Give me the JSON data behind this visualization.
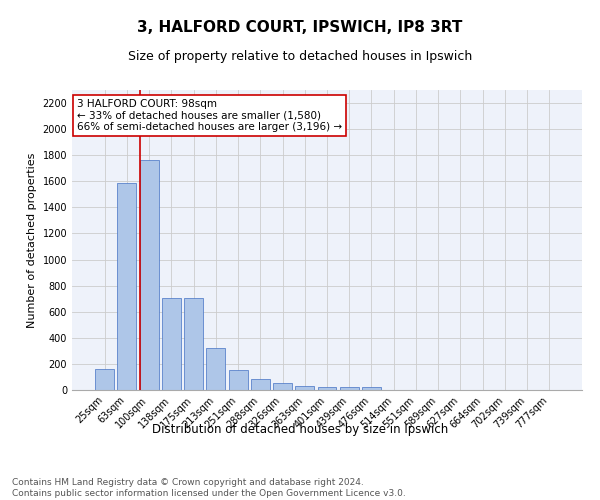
{
  "title1": "3, HALFORD COURT, IPSWICH, IP8 3RT",
  "title2": "Size of property relative to detached houses in Ipswich",
  "xlabel": "Distribution of detached houses by size in Ipswich",
  "ylabel": "Number of detached properties",
  "categories": [
    "25sqm",
    "63sqm",
    "100sqm",
    "138sqm",
    "175sqm",
    "213sqm",
    "251sqm",
    "288sqm",
    "326sqm",
    "363sqm",
    "401sqm",
    "439sqm",
    "476sqm",
    "514sqm",
    "551sqm",
    "589sqm",
    "627sqm",
    "664sqm",
    "702sqm",
    "739sqm",
    "777sqm"
  ],
  "values": [
    160,
    1590,
    1760,
    705,
    705,
    320,
    155,
    85,
    50,
    30,
    20,
    20,
    20,
    0,
    0,
    0,
    0,
    0,
    0,
    0,
    0
  ],
  "bar_color": "#aec6e8",
  "bar_edge_color": "#4472c4",
  "highlight_index": 2,
  "highlight_line_color": "#cc0000",
  "annotation_text": "3 HALFORD COURT: 98sqm\n← 33% of detached houses are smaller (1,580)\n66% of semi-detached houses are larger (3,196) →",
  "annotation_box_color": "#ffffff",
  "annotation_box_edge": "#cc0000",
  "ylim": [
    0,
    2300
  ],
  "yticks": [
    0,
    200,
    400,
    600,
    800,
    1000,
    1200,
    1400,
    1600,
    1800,
    2000,
    2200
  ],
  "grid_color": "#cccccc",
  "background_color": "#eef2fa",
  "footnote": "Contains HM Land Registry data © Crown copyright and database right 2024.\nContains public sector information licensed under the Open Government Licence v3.0.",
  "title1_fontsize": 11,
  "title2_fontsize": 9,
  "xlabel_fontsize": 8.5,
  "ylabel_fontsize": 8,
  "tick_fontsize": 7,
  "annotation_fontsize": 7.5,
  "footnote_fontsize": 6.5
}
